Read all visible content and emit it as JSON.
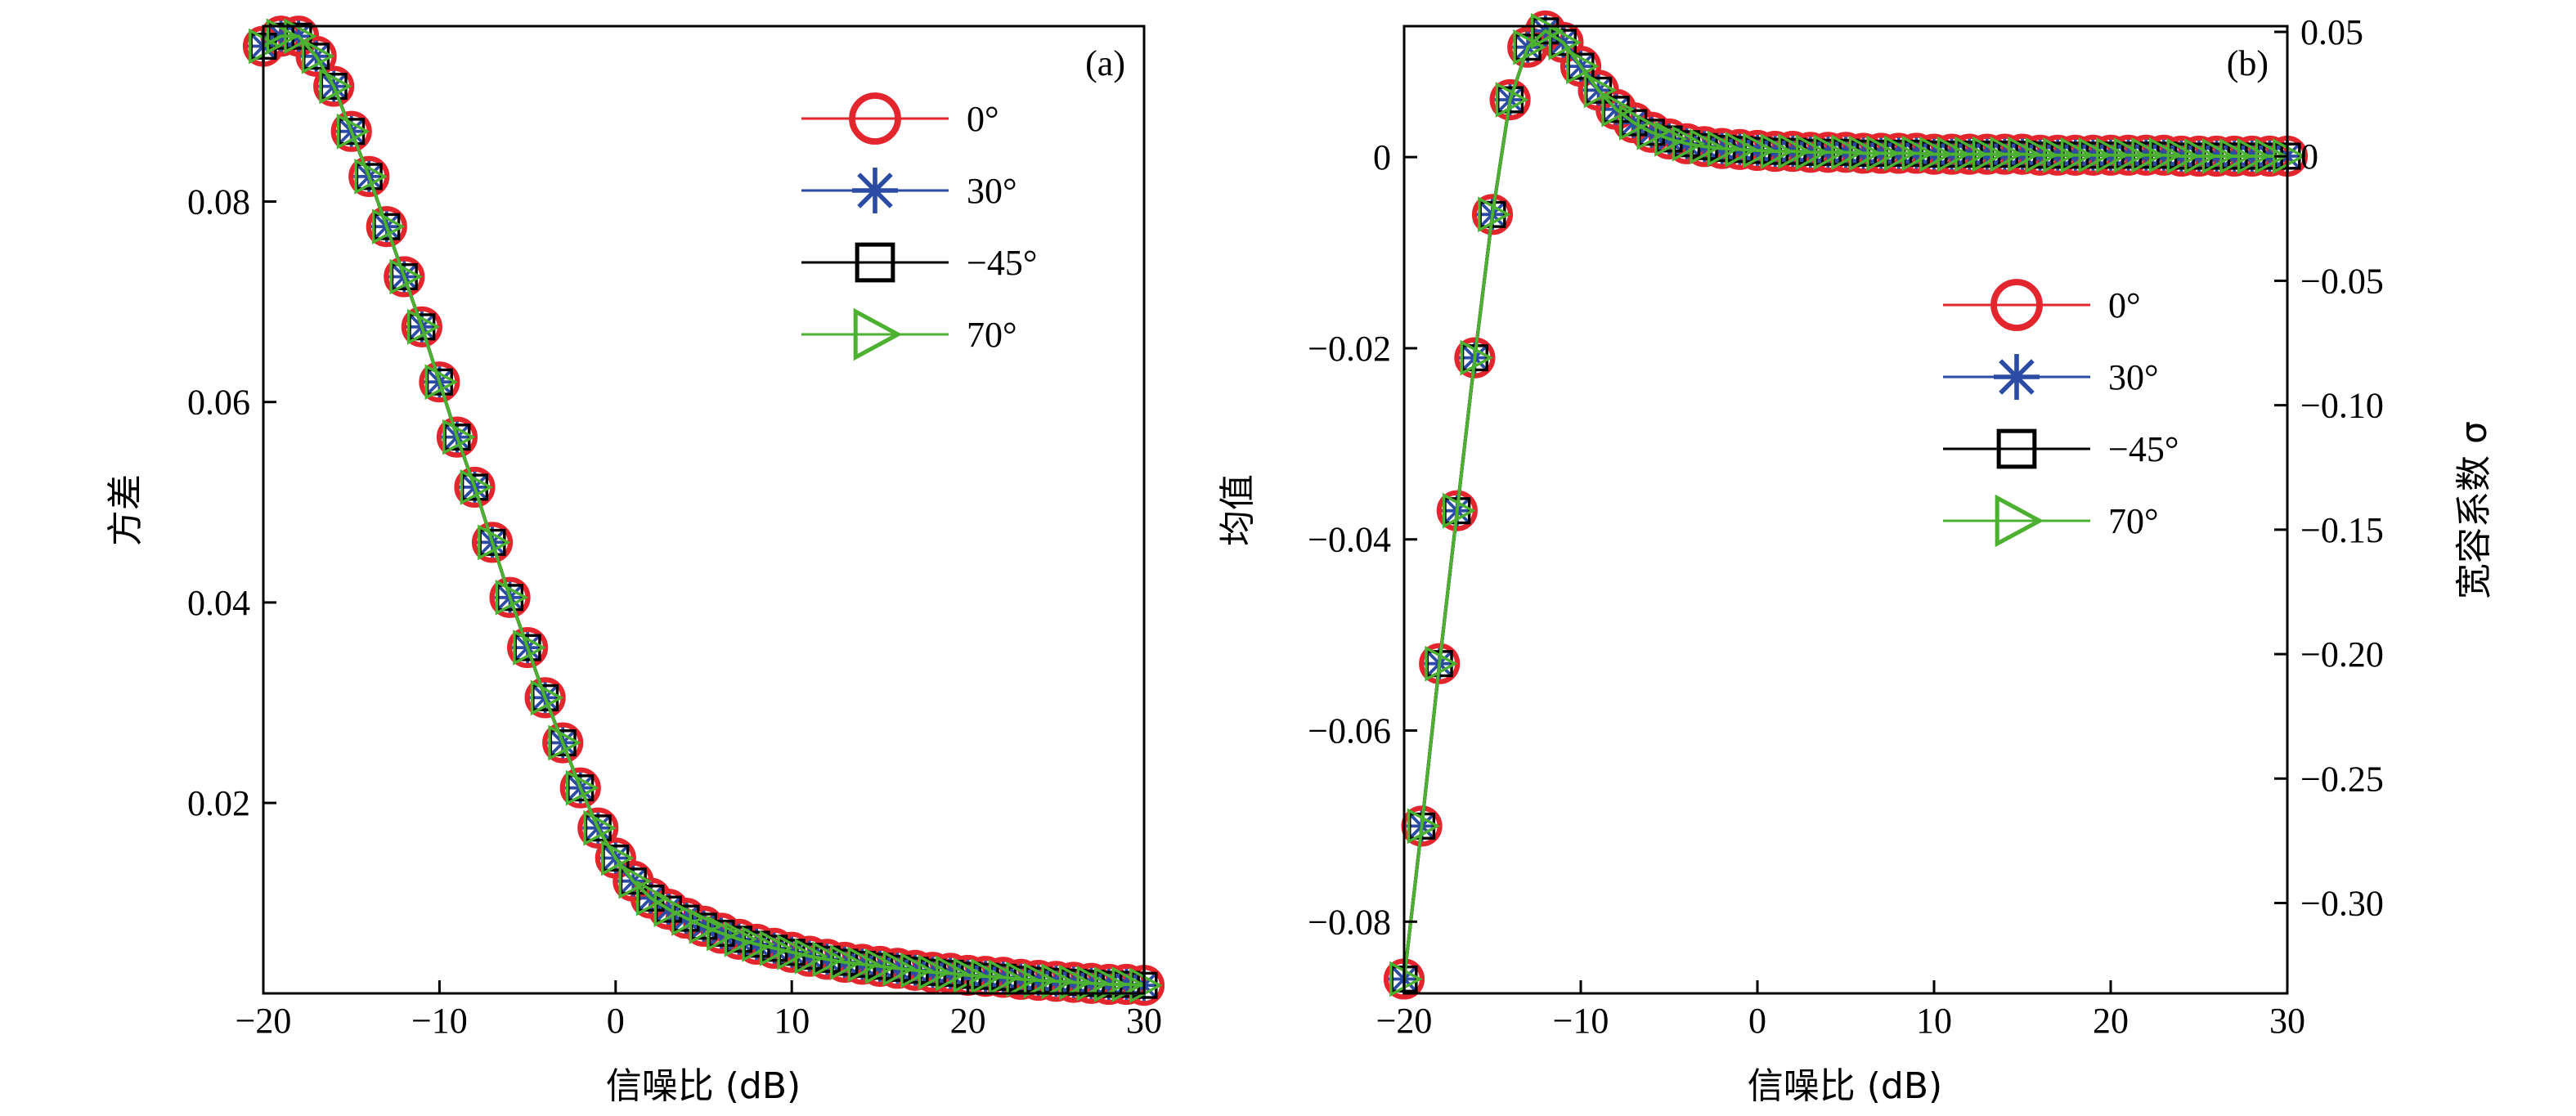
{
  "panel_labels": [
    "(a)",
    "(b)"
  ],
  "colors": {
    "0deg": "#e3262e",
    "30deg": "#2b4ba5",
    "minus45deg": "#000000",
    "70deg": "#4cb030"
  },
  "legend_marker_icons": [
    "circle-marker",
    "asterisk-marker",
    "square-marker",
    "triangle-right-marker"
  ],
  "chart_data": [
    {
      "type": "line",
      "panel": "(a)",
      "xlabel": "信噪比 (dB)",
      "ylabel": "方差",
      "xlim": [
        -20,
        30
      ],
      "ylim": [
        0.001,
        0.0975
      ],
      "xticks": [
        -20,
        -10,
        0,
        10,
        20,
        30
      ],
      "xtick_labels": [
        "−20",
        "−10",
        "0",
        "10",
        "20",
        "30"
      ],
      "yticks": [
        0.02,
        0.04,
        0.06,
        0.08
      ],
      "ytick_labels": [
        "0.02",
        "0.04",
        "0.06",
        "0.08"
      ],
      "grid": false,
      "legend_position": "top-right",
      "x": [
        -20,
        -19,
        -18,
        -17,
        -16,
        -15,
        -14,
        -13,
        -12,
        -11,
        -10,
        -9,
        -8,
        -7,
        -6,
        -5,
        -4,
        -3,
        -2,
        -1,
        0,
        1,
        2,
        3,
        4,
        5,
        6,
        7,
        8,
        9,
        10,
        11,
        12,
        13,
        14,
        15,
        16,
        17,
        18,
        19,
        20,
        21,
        22,
        23,
        24,
        25,
        26,
        27,
        28,
        29,
        30
      ],
      "series": [
        {
          "name": "0°",
          "marker": "circle",
          "values": [
            0.0955,
            0.0965,
            0.0965,
            0.0945,
            0.0915,
            0.087,
            0.0825,
            0.0775,
            0.0725,
            0.0675,
            0.062,
            0.0565,
            0.0515,
            0.046,
            0.0405,
            0.0355,
            0.0305,
            0.026,
            0.0215,
            0.0175,
            0.0145,
            0.0122,
            0.0105,
            0.0094,
            0.0085,
            0.0077,
            0.007,
            0.0064,
            0.0059,
            0.0055,
            0.0051,
            0.0047,
            0.0044,
            0.0041,
            0.0039,
            0.0037,
            0.0035,
            0.0033,
            0.0031,
            0.003,
            0.0028,
            0.0027,
            0.0026,
            0.0024,
            0.0023,
            0.0022,
            0.0021,
            0.002,
            0.0019,
            0.0019,
            0.0018
          ]
        },
        {
          "name": "30°",
          "marker": "asterisk",
          "values": [
            0.0955,
            0.0965,
            0.0965,
            0.0945,
            0.0915,
            0.087,
            0.0825,
            0.0775,
            0.0725,
            0.0675,
            0.062,
            0.0565,
            0.0515,
            0.046,
            0.0405,
            0.0355,
            0.0305,
            0.026,
            0.0215,
            0.0175,
            0.0145,
            0.0122,
            0.0105,
            0.0094,
            0.0085,
            0.0077,
            0.007,
            0.0064,
            0.0059,
            0.0055,
            0.0051,
            0.0047,
            0.0044,
            0.0041,
            0.0039,
            0.0037,
            0.0035,
            0.0033,
            0.0031,
            0.003,
            0.0028,
            0.0027,
            0.0026,
            0.0024,
            0.0023,
            0.0022,
            0.0021,
            0.002,
            0.0019,
            0.0019,
            0.0018
          ]
        },
        {
          "name": "−45°",
          "marker": "square",
          "values": [
            0.0955,
            0.0965,
            0.0965,
            0.0945,
            0.0915,
            0.087,
            0.0825,
            0.0775,
            0.0725,
            0.0675,
            0.062,
            0.0565,
            0.0515,
            0.046,
            0.0405,
            0.0355,
            0.0305,
            0.026,
            0.0215,
            0.0175,
            0.0145,
            0.0122,
            0.0105,
            0.0094,
            0.0085,
            0.0077,
            0.007,
            0.0064,
            0.0059,
            0.0055,
            0.0051,
            0.0047,
            0.0044,
            0.0041,
            0.0039,
            0.0037,
            0.0035,
            0.0033,
            0.0031,
            0.003,
            0.0028,
            0.0027,
            0.0026,
            0.0024,
            0.0023,
            0.0022,
            0.0021,
            0.002,
            0.0019,
            0.0019,
            0.0018
          ]
        },
        {
          "name": "70°",
          "marker": "triangle-right",
          "values": [
            0.0955,
            0.0965,
            0.0965,
            0.0945,
            0.0915,
            0.087,
            0.0825,
            0.0775,
            0.0725,
            0.0675,
            0.062,
            0.0565,
            0.0515,
            0.046,
            0.0405,
            0.0355,
            0.0305,
            0.026,
            0.0215,
            0.0175,
            0.0145,
            0.0122,
            0.0105,
            0.0094,
            0.0085,
            0.0077,
            0.007,
            0.0064,
            0.0059,
            0.0055,
            0.0051,
            0.0047,
            0.0044,
            0.0041,
            0.0039,
            0.0037,
            0.0035,
            0.0033,
            0.0031,
            0.003,
            0.0028,
            0.0027,
            0.0026,
            0.0024,
            0.0023,
            0.0022,
            0.0021,
            0.002,
            0.0019,
            0.0019,
            0.0018
          ]
        }
      ]
    },
    {
      "type": "line",
      "panel": "(b)",
      "xlabel": "信噪比 (dB)",
      "ylabel": "均值",
      "y2label": "宽容系数 σ",
      "xlim": [
        -20,
        30
      ],
      "ylim": [
        -0.0875,
        0.0137
      ],
      "y2lim": [
        -0.3363,
        0.0523
      ],
      "xticks": [
        -20,
        -10,
        0,
        10,
        20,
        30
      ],
      "xtick_labels": [
        "−20",
        "−10",
        "0",
        "10",
        "20",
        "30"
      ],
      "yticks": [
        -0.08,
        -0.06,
        -0.04,
        -0.02,
        0
      ],
      "ytick_labels": [
        "−0.08",
        "−0.06",
        "−0.04",
        "−0.02",
        "0"
      ],
      "y2ticks": [
        0.05,
        0,
        -0.05,
        -0.1,
        -0.15,
        -0.2,
        -0.25,
        -0.3
      ],
      "y2tick_labels": [
        "0.05",
        "0",
        "−0.05",
        "−0.10",
        "−0.15",
        "−0.20",
        "−0.25",
        "−0.30"
      ],
      "grid": false,
      "legend_position": "center-right",
      "x": [
        -20,
        -19,
        -18,
        -17,
        -16,
        -15,
        -14,
        -13,
        -12,
        -11,
        -10,
        -9,
        -8,
        -7,
        -6,
        -5,
        -4,
        -3,
        -2,
        -1,
        0,
        1,
        2,
        3,
        4,
        5,
        6,
        7,
        8,
        9,
        10,
        11,
        12,
        13,
        14,
        15,
        16,
        17,
        18,
        19,
        20,
        21,
        22,
        23,
        24,
        25,
        26,
        27,
        28,
        29,
        30
      ],
      "series": [
        {
          "name": "0°",
          "marker": "circle",
          "values": [
            -0.086,
            -0.07,
            -0.053,
            -0.037,
            -0.021,
            -0.006,
            0.006,
            0.0115,
            0.0132,
            0.012,
            0.0095,
            0.007,
            0.005,
            0.0036,
            0.0026,
            0.0019,
            0.0014,
            0.0011,
            0.0009,
            0.0008,
            0.0007,
            0.0006,
            0.0006,
            0.0005,
            0.0005,
            0.0005,
            0.0004,
            0.0004,
            0.0004,
            0.0004,
            0.0003,
            0.0003,
            0.0003,
            0.0003,
            0.0003,
            0.0003,
            0.0002,
            0.0002,
            0.0002,
            0.0002,
            0.0002,
            0.0002,
            0.0002,
            0.0002,
            0.0001,
            0.0001,
            0.0001,
            0.0001,
            0.0001,
            0.0001,
            0.0001
          ]
        },
        {
          "name": "30°",
          "marker": "asterisk",
          "values": [
            -0.086,
            -0.07,
            -0.053,
            -0.037,
            -0.021,
            -0.006,
            0.006,
            0.0115,
            0.0132,
            0.012,
            0.0095,
            0.007,
            0.005,
            0.0036,
            0.0026,
            0.0019,
            0.0014,
            0.0011,
            0.0009,
            0.0008,
            0.0007,
            0.0006,
            0.0006,
            0.0005,
            0.0005,
            0.0005,
            0.0004,
            0.0004,
            0.0004,
            0.0004,
            0.0003,
            0.0003,
            0.0003,
            0.0003,
            0.0003,
            0.0003,
            0.0002,
            0.0002,
            0.0002,
            0.0002,
            0.0002,
            0.0002,
            0.0002,
            0.0002,
            0.0001,
            0.0001,
            0.0001,
            0.0001,
            0.0001,
            0.0001,
            0.0001
          ]
        },
        {
          "name": "−45°",
          "marker": "square",
          "values": [
            -0.086,
            -0.07,
            -0.053,
            -0.037,
            -0.021,
            -0.006,
            0.006,
            0.0115,
            0.0132,
            0.012,
            0.0095,
            0.007,
            0.005,
            0.0036,
            0.0026,
            0.0019,
            0.0014,
            0.0011,
            0.0009,
            0.0008,
            0.0007,
            0.0006,
            0.0006,
            0.0005,
            0.0005,
            0.0005,
            0.0004,
            0.0004,
            0.0004,
            0.0004,
            0.0003,
            0.0003,
            0.0003,
            0.0003,
            0.0003,
            0.0003,
            0.0002,
            0.0002,
            0.0002,
            0.0002,
            0.0002,
            0.0002,
            0.0002,
            0.0002,
            0.0001,
            0.0001,
            0.0001,
            0.0001,
            0.0001,
            0.0001,
            0.0001
          ]
        },
        {
          "name": "70°",
          "marker": "triangle-right",
          "values": [
            -0.086,
            -0.07,
            -0.053,
            -0.037,
            -0.021,
            -0.006,
            0.006,
            0.0115,
            0.0132,
            0.012,
            0.0095,
            0.007,
            0.005,
            0.0036,
            0.0026,
            0.0019,
            0.0014,
            0.0011,
            0.0009,
            0.0008,
            0.0007,
            0.0006,
            0.0006,
            0.0005,
            0.0005,
            0.0005,
            0.0004,
            0.0004,
            0.0004,
            0.0004,
            0.0003,
            0.0003,
            0.0003,
            0.0003,
            0.0003,
            0.0003,
            0.0002,
            0.0002,
            0.0002,
            0.0002,
            0.0002,
            0.0002,
            0.0002,
            0.0002,
            0.0001,
            0.0001,
            0.0001,
            0.0001,
            0.0001,
            0.0001,
            0.0001
          ]
        }
      ]
    }
  ]
}
